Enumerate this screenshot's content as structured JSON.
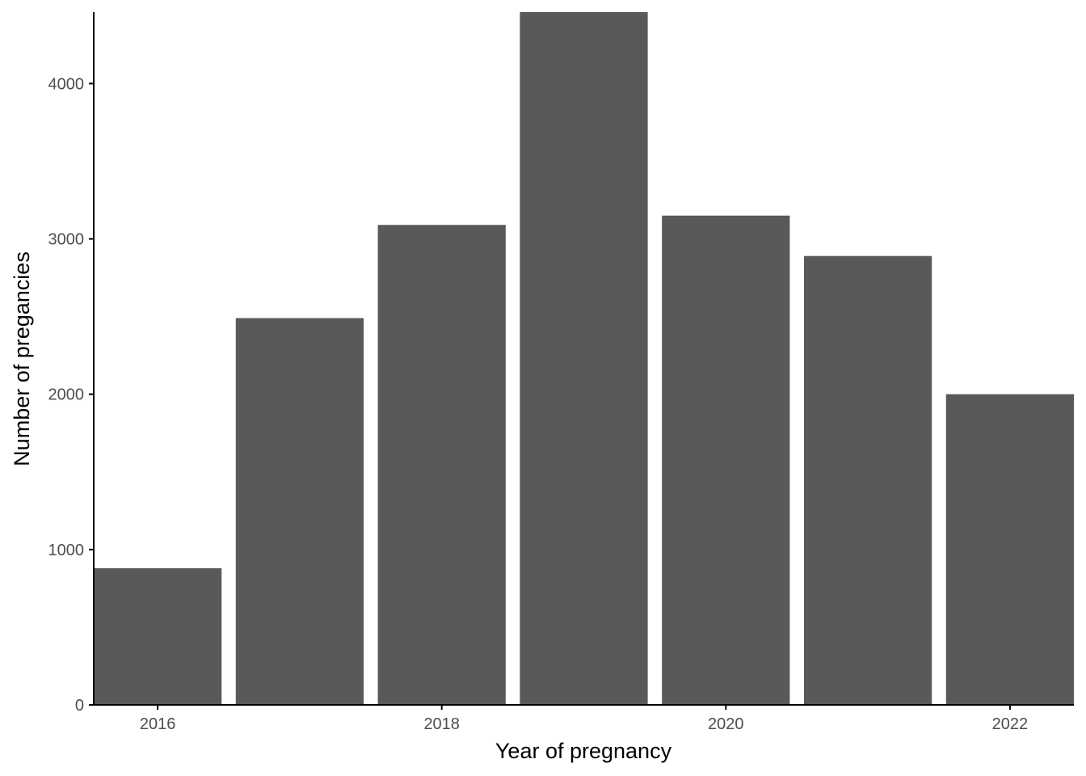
{
  "chart_data": {
    "type": "bar",
    "title": "",
    "xlabel": "Year of pregnancy",
    "ylabel": "Number of pregancies",
    "categories": [
      2016,
      2017,
      2018,
      2019,
      2020,
      2021,
      2022
    ],
    "values": [
      880,
      2490,
      3090,
      4460,
      3150,
      2890,
      2000
    ],
    "xlim": [
      2015.55,
      2022.45
    ],
    "ylim": [
      0,
      4460
    ],
    "x_ticks": [
      2016,
      2018,
      2020,
      2022
    ],
    "y_ticks": [
      0,
      1000,
      2000,
      3000,
      4000
    ],
    "grid": false,
    "legend": "none",
    "bar_color": "#595959",
    "axis_color": "#000000"
  }
}
